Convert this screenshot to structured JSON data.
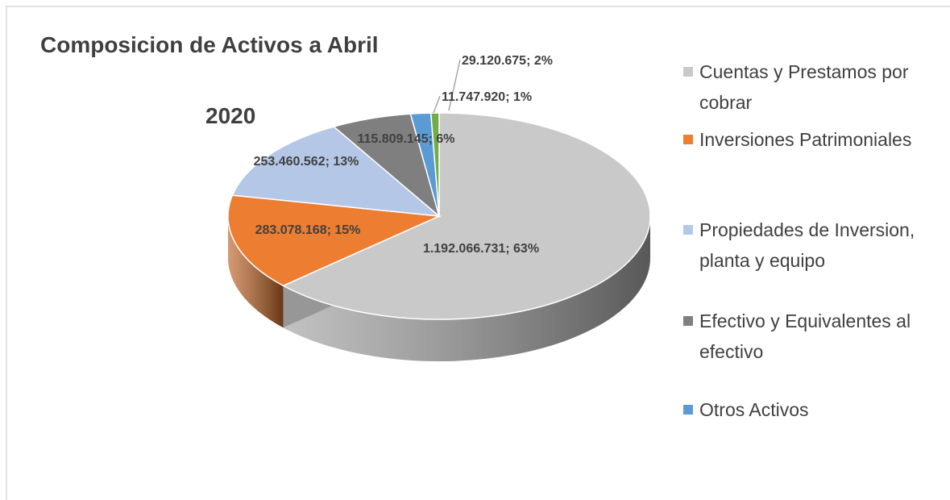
{
  "chart_data": {
    "type": "pie",
    "title": "Composicion de Activos a Abril",
    "subtitle": "2020",
    "categories": [
      "Cuentas y Prestamos por cobrar",
      "Inversiones Patrimoniales",
      "Propiedades de Inversion, planta y equipo",
      "Efectivo y Equivalentes al efectivo",
      "Otros Activos",
      null
    ],
    "values": [
      1192066731,
      283078168,
      253460562,
      115809145,
      29120675,
      11747920
    ],
    "value_labels": [
      "1.192.066.731; 63%",
      "283.078.168; 15%",
      "253.460.562; 13%",
      "115.809.145; 6%",
      "29.120.675; 2%",
      "11.747.920; 1%"
    ],
    "colors": [
      "#c9c9c9",
      "#ed7d31",
      "#b4c7e7",
      "#7f7f7f",
      "#5b9bd5",
      "#70ad47"
    ]
  }
}
